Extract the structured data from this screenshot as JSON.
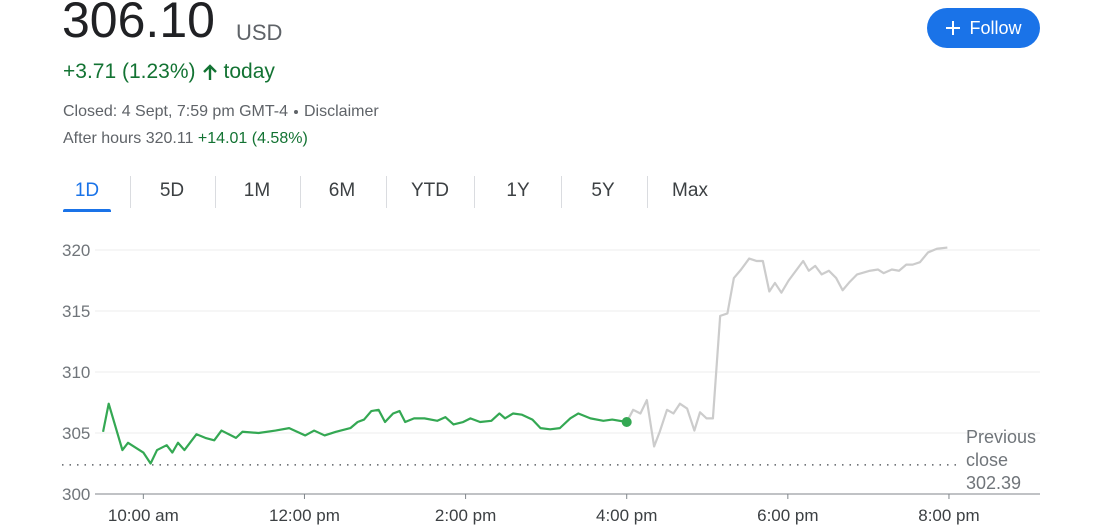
{
  "header": {
    "price": "306.10",
    "currency": "USD",
    "follow": "Follow",
    "change": "+3.71 (1.23%)",
    "change_period": "today",
    "closed": "Closed: 4 Sept, 7:59 pm GMT-4",
    "disclaimer": "Disclaimer",
    "after_hours_label": "After hours",
    "after_hours_price": "320.11",
    "after_hours_change": "+14.01 (4.58%)"
  },
  "tabs": [
    "1D",
    "5D",
    "1M",
    "6M",
    "YTD",
    "1Y",
    "5Y",
    "Max"
  ],
  "chart_data": {
    "type": "line",
    "xlim": [
      9.4,
      21.13
    ],
    "xticks": [
      {
        "value": 10,
        "label": "10:00 am"
      },
      {
        "value": 12,
        "label": "12:00 pm"
      },
      {
        "value": 14,
        "label": "2:00 pm"
      },
      {
        "value": 16,
        "label": "4:00 pm"
      },
      {
        "value": 18,
        "label": "6:00 pm"
      },
      {
        "value": 20,
        "label": "8:00 pm"
      }
    ],
    "ylim": [
      300,
      321.5
    ],
    "yticks": [
      300,
      305,
      310,
      315,
      320
    ],
    "grid": true,
    "previous_close": {
      "label": "Previous close",
      "value": 302.39
    },
    "series": [
      {
        "color": "#34a853",
        "x": [
          9.5,
          9.57,
          9.74,
          9.81,
          10,
          10.09,
          10.17,
          10.29,
          10.36,
          10.43,
          10.51,
          10.66,
          10.77,
          10.88,
          10.97,
          11.15,
          11.23,
          11.43,
          11.64,
          11.81,
          12.01,
          12.12,
          12.25,
          12.39,
          12.57,
          12.66,
          12.74,
          12.83,
          12.92,
          13,
          13.1,
          13.18,
          13.25,
          13.36,
          13.49,
          13.65,
          13.75,
          13.85,
          13.97,
          14.06,
          14.18,
          14.32,
          14.42,
          14.49,
          14.59,
          14.7,
          14.83,
          14.93,
          15.05,
          15.17,
          15.3,
          15.4,
          15.55,
          15.71,
          15.82,
          16
        ],
        "values": [
          305.1,
          307.4,
          303.6,
          304.2,
          303.4,
          302.5,
          303.6,
          304,
          303.4,
          304.2,
          303.6,
          304.9,
          304.6,
          304.4,
          305.2,
          304.6,
          305.1,
          305,
          305.2,
          305.4,
          304.8,
          305.2,
          304.8,
          305.1,
          305.4,
          305.9,
          306.1,
          306.8,
          306.9,
          305.9,
          306.6,
          306.8,
          305.9,
          306.2,
          306.2,
          306,
          306.3,
          305.7,
          305.9,
          306.2,
          305.9,
          306,
          306.6,
          306.2,
          306.6,
          306.5,
          306.1,
          305.4,
          305.3,
          305.4,
          306.2,
          306.6,
          306.2,
          306,
          306.1,
          305.9
        ]
      },
      {
        "color": "#cccccc",
        "x": [
          16,
          16.08,
          16.17,
          16.25,
          16.34,
          16.41,
          16.5,
          16.58,
          16.66,
          16.75,
          16.84,
          16.91,
          16.99,
          17.07,
          17.16,
          17.25,
          17.33,
          17.42,
          17.52,
          17.61,
          17.69,
          17.77,
          17.84,
          17.92,
          18.01,
          18.1,
          18.19,
          18.26,
          18.34,
          18.42,
          18.51,
          18.6,
          18.68,
          18.77,
          18.86,
          19.02,
          19.12,
          19.19,
          19.29,
          19.38,
          19.47,
          19.55,
          19.64,
          19.74,
          19.85,
          19.98
        ],
        "values": [
          305.9,
          306.9,
          306.6,
          307.7,
          303.9,
          305.1,
          306.9,
          306.6,
          307.4,
          307,
          305.2,
          306.7,
          306.2,
          306.2,
          314.6,
          314.8,
          317.7,
          318.4,
          319.3,
          319.1,
          319.1,
          316.6,
          317.3,
          316.5,
          317.5,
          318.3,
          319.1,
          318.3,
          318.7,
          318,
          318.3,
          317.7,
          316.7,
          317.4,
          318,
          318.3,
          318.4,
          318.1,
          318.4,
          318.3,
          318.8,
          318.8,
          319,
          319.8,
          320.1,
          320.2
        ]
      }
    ]
  }
}
